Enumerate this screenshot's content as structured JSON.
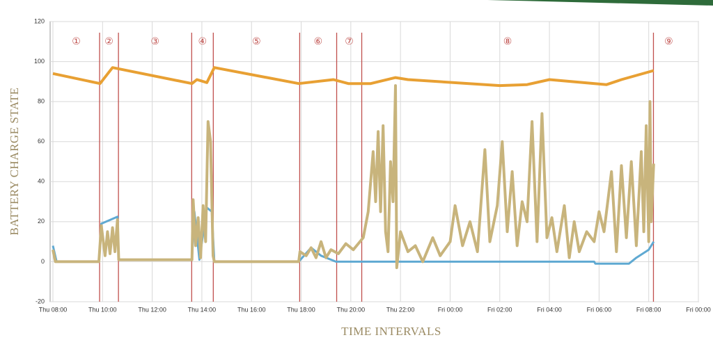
{
  "chart_data": {
    "type": "line",
    "ylabel": "BATTERY CHARGE STATE",
    "xlabel": "TIME INTERVALS",
    "xlim": [
      8,
      34
    ],
    "ylim": [
      -20,
      120
    ],
    "yticks": [
      -20,
      0,
      20,
      40,
      60,
      80,
      100,
      120
    ],
    "xticks": [
      {
        "value": 8,
        "label": "Thu 08:00"
      },
      {
        "value": 10,
        "label": "Thu 10:00"
      },
      {
        "value": 12,
        "label": "Thu 12:00"
      },
      {
        "value": 14,
        "label": "Thu 14:00"
      },
      {
        "value": 16,
        "label": "Thu 16:00"
      },
      {
        "value": 18,
        "label": "Thu 18:00"
      },
      {
        "value": 20,
        "label": "Thu 20:00"
      },
      {
        "value": 22,
        "label": "Thu 22:00"
      },
      {
        "value": 24,
        "label": "Fri 00:00"
      },
      {
        "value": 26,
        "label": "Fri 02:00"
      },
      {
        "value": 28,
        "label": "Fri 04:00"
      },
      {
        "value": 30,
        "label": "Fri 06:00"
      },
      {
        "value": 32,
        "label": "Fri 08:00"
      },
      {
        "value": 34,
        "label": "Fri 00:00"
      }
    ],
    "grid": true,
    "boundary_color": "#c0504d",
    "boundaries": [
      9.88,
      10.64,
      13.59,
      14.46,
      17.94,
      19.43,
      20.44,
      32.19
    ],
    "regions": [
      "①",
      "②",
      "③",
      "④",
      "⑤",
      "⑥",
      "⑦",
      "⑧",
      "⑨"
    ],
    "series": [
      {
        "color": "#e8a033",
        "width": 4,
        "x": [
          8,
          9.9,
          10.4,
          13.6,
          13.8,
          14.2,
          14.5,
          17.9,
          19.3,
          19.9,
          20.8,
          21.8,
          22.3,
          26,
          27.1,
          28,
          30.3,
          30.9,
          32.2
        ],
        "values": [
          94,
          89,
          97,
          89,
          91,
          89.5,
          97,
          89,
          91,
          89,
          89,
          92,
          91,
          88,
          88.5,
          91,
          88.5,
          91,
          95.5
        ]
      },
      {
        "color": "#5fa9d2",
        "width": 3,
        "x": [
          8,
          8.15,
          9.85,
          9.95,
          10.6,
          10.65,
          13.6,
          13.7,
          13.9,
          14.2,
          14.4,
          14.5,
          17.9,
          18.4,
          18.8,
          19.4,
          20.3,
          22,
          29.8,
          29.85,
          31.2,
          31.5,
          32,
          32.2
        ],
        "values": [
          8,
          0,
          0,
          19,
          22.5,
          1,
          1,
          25,
          1,
          27,
          25,
          0,
          0,
          7,
          3,
          0,
          0,
          0,
          0,
          -1,
          -1,
          2,
          6,
          10
        ]
      },
      {
        "color": "#c8b47c",
        "width": 4,
        "x": [
          8,
          8.1,
          9.85,
          9.95,
          10.1,
          10.2,
          10.3,
          10.4,
          10.5,
          10.6,
          10.65,
          13.6,
          13.65,
          13.75,
          13.85,
          13.95,
          14.05,
          14.15,
          14.25,
          14.35,
          14.45,
          14.5,
          17.9,
          17.95,
          18.2,
          18.4,
          18.6,
          18.8,
          19.0,
          19.2,
          19.5,
          19.8,
          20.1,
          20.5,
          20.7,
          20.9,
          21.0,
          21.1,
          21.2,
          21.3,
          21.4,
          21.5,
          21.6,
          21.7,
          21.8,
          21.85,
          22.0,
          22.3,
          22.6,
          22.9,
          23.3,
          23.6,
          24.0,
          24.2,
          24.5,
          24.8,
          25.1,
          25.4,
          25.6,
          25.9,
          26.1,
          26.3,
          26.5,
          26.7,
          26.9,
          27.1,
          27.3,
          27.5,
          27.7,
          27.9,
          28.1,
          28.3,
          28.6,
          28.8,
          29.0,
          29.2,
          29.5,
          29.8,
          30.0,
          30.2,
          30.5,
          30.7,
          30.9,
          31.1,
          31.3,
          31.5,
          31.7,
          31.8,
          31.9,
          32.0,
          32.05,
          32.1,
          32.2
        ],
        "values": [
          6,
          0,
          0,
          18,
          3,
          15,
          4,
          17,
          5,
          21,
          1,
          1,
          31,
          8,
          22,
          2,
          28,
          10,
          70,
          60,
          3,
          0,
          0,
          5,
          3,
          7,
          2,
          10,
          2,
          6,
          4,
          9,
          6,
          12,
          25,
          55,
          30,
          65,
          25,
          68,
          15,
          5,
          50,
          30,
          88,
          -3,
          15,
          5,
          8,
          0,
          12,
          3,
          10,
          28,
          8,
          20,
          5,
          56,
          10,
          28,
          60,
          15,
          45,
          8,
          30,
          20,
          70,
          10,
          74,
          12,
          22,
          5,
          28,
          2,
          20,
          5,
          15,
          10,
          25,
          15,
          45,
          5,
          48,
          12,
          50,
          8,
          55,
          15,
          68,
          10,
          80,
          20,
          49
        ]
      }
    ]
  }
}
